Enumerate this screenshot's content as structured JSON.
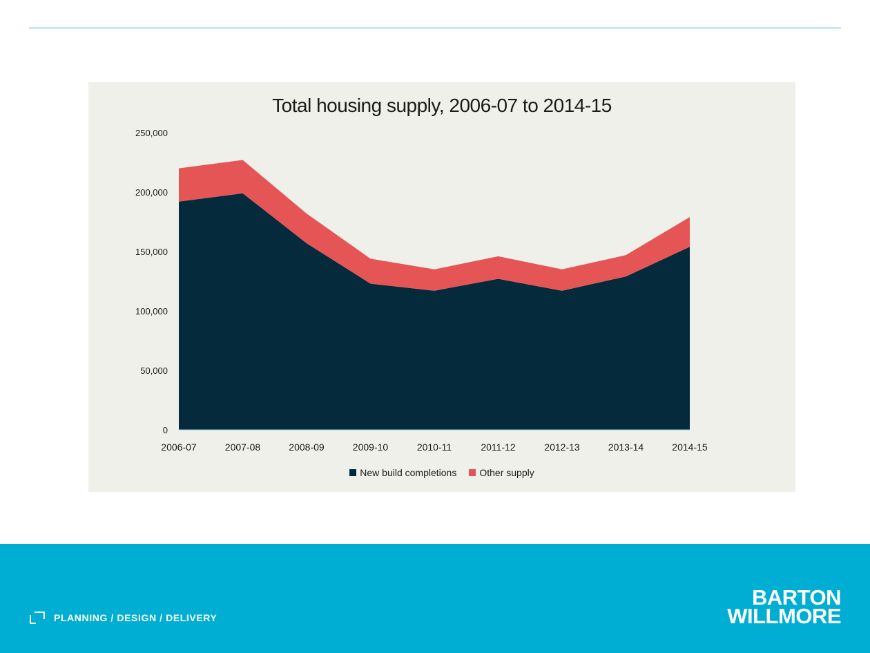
{
  "chart_data": {
    "type": "area",
    "stacked": true,
    "title": "Total housing supply, 2006-07 to 2014-15",
    "categories": [
      "2006-07",
      "2007-08",
      "2008-09",
      "2009-10",
      "2010-11",
      "2011-12",
      "2012-13",
      "2013-14",
      "2014-15"
    ],
    "series": [
      {
        "name": "New build completions",
        "values": [
          192000,
          199000,
          157000,
          123000,
          117000,
          127000,
          117000,
          129000,
          154000
        ],
        "color": "#052a3b"
      },
      {
        "name": "Other supply",
        "values": [
          28000,
          28000,
          25000,
          21000,
          18000,
          19000,
          18000,
          18000,
          25000
        ],
        "color": "#e65555"
      }
    ],
    "yticks": [
      "0",
      "50,000",
      "100,000",
      "150,000",
      "200,000",
      "250,000"
    ],
    "ylim": [
      0,
      250000
    ],
    "grid": false,
    "legend": "bottom"
  },
  "footer": {
    "tagline": "PLANNING / DESIGN / DELIVERY",
    "logo_line1": "BARTON",
    "logo_line2": "WILLMORE"
  }
}
